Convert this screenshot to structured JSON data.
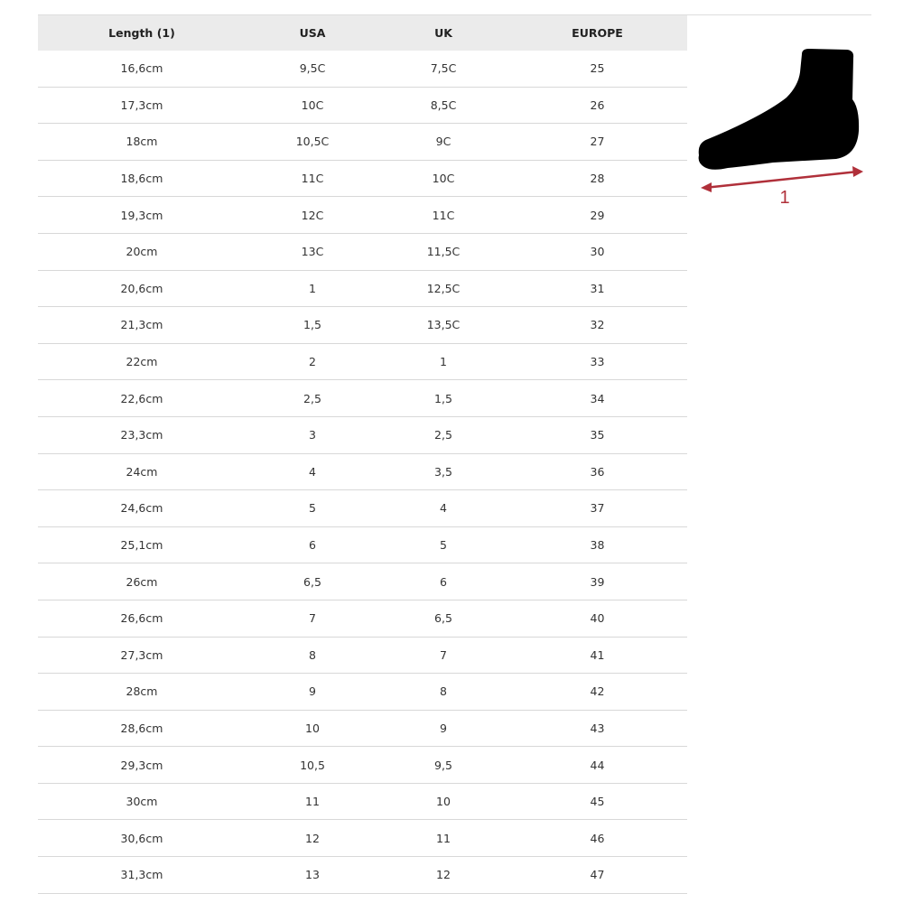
{
  "table": {
    "headers": [
      "Length (1)",
      "USA",
      "UK",
      "EUROPE"
    ],
    "rows": [
      [
        "16,6cm",
        "9,5C",
        "7,5C",
        "25"
      ],
      [
        "17,3cm",
        "10C",
        "8,5C",
        "26"
      ],
      [
        "18cm",
        "10,5C",
        "9C",
        "27"
      ],
      [
        "18,6cm",
        "11C",
        "10C",
        "28"
      ],
      [
        "19,3cm",
        "12C",
        "11C",
        "29"
      ],
      [
        "20cm",
        "13C",
        "11,5C",
        "30"
      ],
      [
        "20,6cm",
        "1",
        "12,5C",
        "31"
      ],
      [
        "21,3cm",
        "1,5",
        "13,5C",
        "32"
      ],
      [
        "22cm",
        "2",
        "1",
        "33"
      ],
      [
        "22,6cm",
        "2,5",
        "1,5",
        "34"
      ],
      [
        "23,3cm",
        "3",
        "2,5",
        "35"
      ],
      [
        "24cm",
        "4",
        "3,5",
        "36"
      ],
      [
        "24,6cm",
        "5",
        "4",
        "37"
      ],
      [
        "25,1cm",
        "6",
        "5",
        "38"
      ],
      [
        "26cm",
        "6,5",
        "6",
        "39"
      ],
      [
        "26,6cm",
        "7",
        "6,5",
        "40"
      ],
      [
        "27,3cm",
        "8",
        "7",
        "41"
      ],
      [
        "28cm",
        "9",
        "8",
        "42"
      ],
      [
        "28,6cm",
        "10",
        "9",
        "43"
      ],
      [
        "29,3cm",
        "10,5",
        "9,5",
        "44"
      ],
      [
        "30cm",
        "11",
        "10",
        "45"
      ],
      [
        "30,6cm",
        "12",
        "11",
        "46"
      ],
      [
        "31,3cm",
        "13",
        "12",
        "47"
      ]
    ]
  },
  "diagram": {
    "label": "1",
    "arrow_color": "#b0303a",
    "foot_color": "#000000"
  }
}
